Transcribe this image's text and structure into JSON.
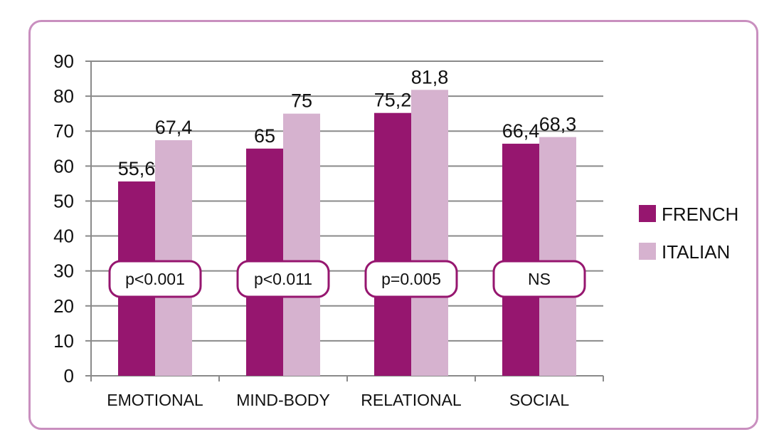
{
  "chart_data": {
    "type": "bar",
    "categories": [
      "EMOTIONAL",
      "MIND-BODY",
      "RELATIONAL",
      "SOCIAL"
    ],
    "series": [
      {
        "name": "FRENCH",
        "values": [
          55.6,
          65,
          75.2,
          66.4
        ],
        "labels": [
          "55,6",
          "65",
          "75,2",
          "66,4"
        ],
        "color": "#96166f"
      },
      {
        "name": "ITALIAN",
        "values": [
          67.4,
          75,
          81.8,
          68.3
        ],
        "labels": [
          "67,4",
          "75",
          "81,8",
          "68,3"
        ],
        "color": "#d6b2cf"
      }
    ],
    "annotations": [
      "p<0.001",
      "p<0.011",
      "p=0.005",
      "NS"
    ],
    "yticks": [
      0,
      10,
      20,
      30,
      40,
      50,
      60,
      70,
      80,
      90
    ],
    "ylim": [
      0,
      90
    ],
    "grid": true,
    "legend_position": "right",
    "frame_color": "#c98fbf",
    "annotation_border_color": "#96166f"
  }
}
